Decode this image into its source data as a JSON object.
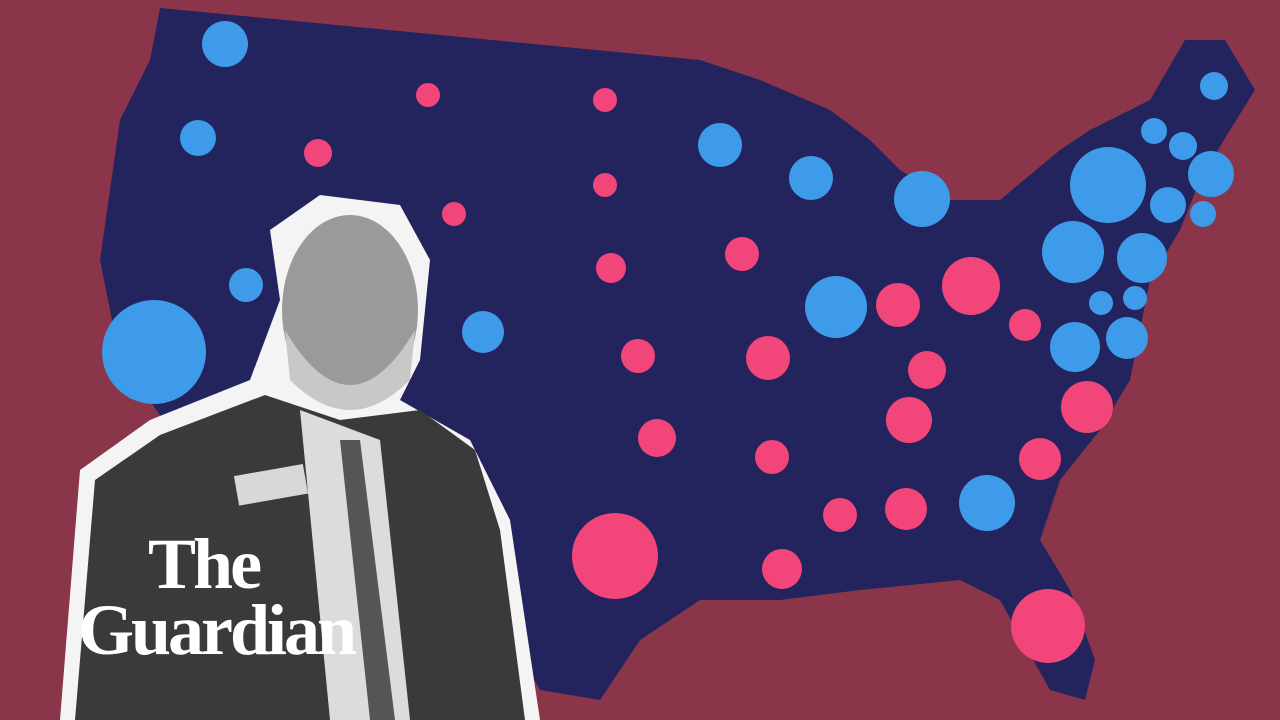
{
  "logo": {
    "line1": "The",
    "line2": "Guardian"
  }
}
